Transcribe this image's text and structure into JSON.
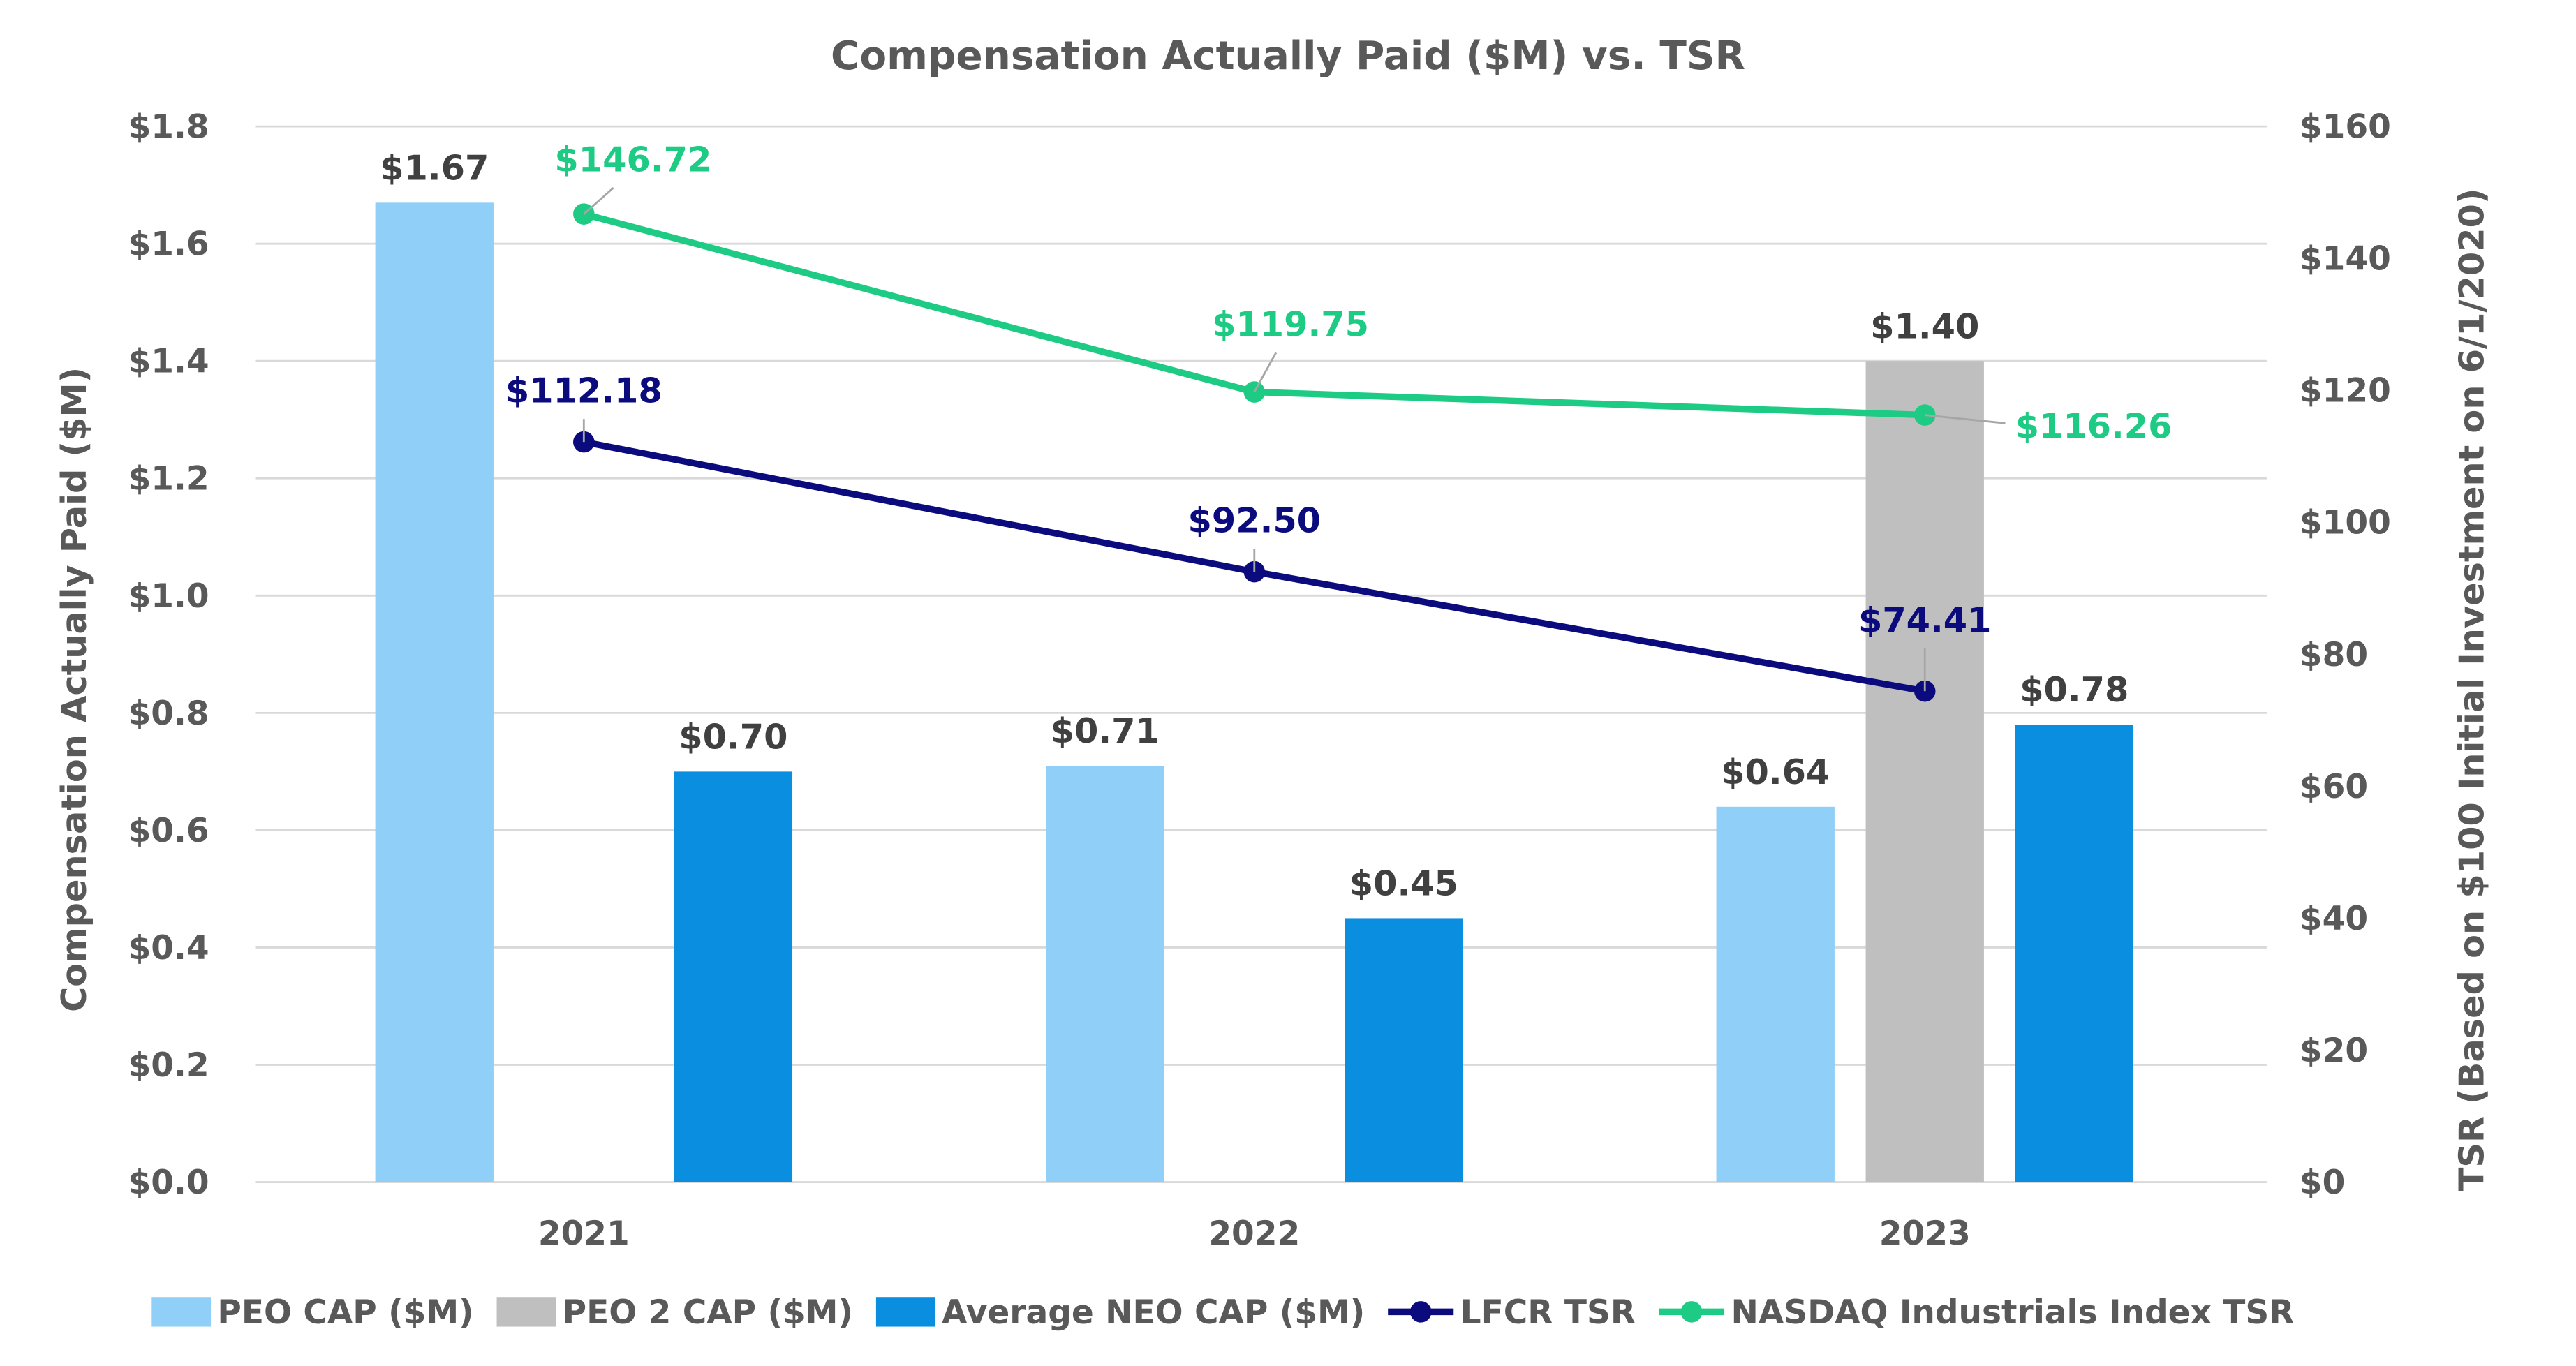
{
  "chart_data": {
    "type": "bar+line",
    "title": "Compensation Actually Paid ($M) vs. TSR",
    "categories": [
      "2021",
      "2022",
      "2023"
    ],
    "ylabel": "Compensation Actually Paid ($M)",
    "y2label": "TSR (Based on $100 Initial Investment on 6/1/2020)",
    "ylim": [
      0,
      1.8
    ],
    "y2lim": [
      0,
      160
    ],
    "yticks": [
      "$0.0",
      "$0.2",
      "$0.4",
      "$0.6",
      "$0.8",
      "$1.0",
      "$1.2",
      "$1.4",
      "$1.6",
      "$1.8"
    ],
    "y2ticks": [
      "$0",
      "$20",
      "$40",
      "$60",
      "$80",
      "$100",
      "$120",
      "$140",
      "$160"
    ],
    "grid": true,
    "legend_position": "bottom",
    "bar_series": [
      {
        "name": "PEO CAP ($M)",
        "color": "#8FCFF8",
        "values": [
          1.67,
          0.71,
          0.64
        ],
        "labels": [
          "$1.67",
          "$0.71",
          "$0.64"
        ]
      },
      {
        "name": "PEO 2 CAP ($M)",
        "color": "#BFBFBF",
        "values": [
          null,
          null,
          1.4
        ],
        "labels": [
          null,
          null,
          "$1.40"
        ]
      },
      {
        "name": "Average NEO CAP ($M)",
        "color": "#0A8FE0",
        "values": [
          0.7,
          0.45,
          0.78
        ],
        "labels": [
          "$0.70",
          "$0.45",
          "$0.78"
        ]
      }
    ],
    "line_series": [
      {
        "name": "LFCR TSR",
        "color": "#0B0B7E",
        "axis": "right",
        "values": [
          112.18,
          92.5,
          74.41
        ],
        "labels": [
          "$112.18",
          "$92.50",
          "$74.41"
        ]
      },
      {
        "name": "NASDAQ Industrials Index TSR",
        "color": "#1DCB84",
        "axis": "right",
        "values": [
          146.72,
          119.75,
          116.26
        ],
        "labels": [
          "$146.72",
          "$119.75",
          "$116.26"
        ]
      }
    ],
    "label_color": "#404040",
    "grid_color": "#D9D9D9"
  }
}
